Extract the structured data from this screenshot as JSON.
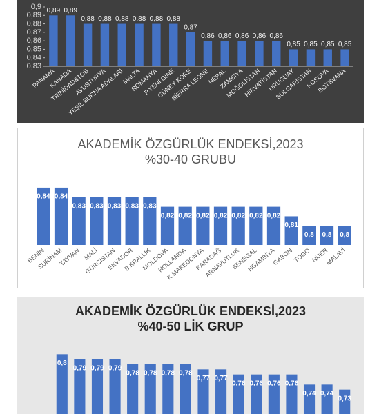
{
  "chart_data": [
    {
      "type": "bar",
      "categories": [
        "PANAMA",
        "KANADA",
        "TRİNİDAD&TOB",
        "AVUSTURYA",
        "YEŞİL BURNA ADALARI",
        "MALTA",
        "ROMANYA",
        "P.YENİ GİNE",
        "GÜNEY KORE",
        "SİERRA LEONE",
        "NEPAL",
        "ZAMBİYA",
        "MOĞOLİSTAN",
        "HIRVATİSTAN",
        "URUGUAY",
        "BULGARİSTAN",
        "KOSOVA",
        "BOTSVANA"
      ],
      "values": [
        0.89,
        0.89,
        0.88,
        0.88,
        0.88,
        0.88,
        0.88,
        0.88,
        0.87,
        0.86,
        0.86,
        0.86,
        0.86,
        0.86,
        0.85,
        0.85,
        0.85,
        0.85
      ],
      "value_labels": [
        "0,89",
        "0,89",
        "0,88",
        "0,88",
        "0,88",
        "0,88",
        "0,88",
        "0,88",
        "0,87",
        "0,86",
        "0,86",
        "0,86",
        "0,86",
        "0,86",
        "0,85",
        "0,85",
        "0,85",
        "0,85"
      ],
      "color": "#4472c4",
      "ylim": [
        0.83,
        0.9
      ],
      "yticks": [
        {
          "value": 0.83,
          "label": "0,83"
        },
        {
          "value": 0.84,
          "label": "0,84"
        },
        {
          "value": 0.85,
          "label": "0,85"
        },
        {
          "value": 0.86,
          "label": "0,86"
        },
        {
          "value": 0.87,
          "label": "0,87"
        },
        {
          "value": 0.88,
          "label": "0,88"
        },
        {
          "value": 0.89,
          "label": "0,89"
        },
        {
          "value": 0.9,
          "label": "0,9"
        }
      ]
    },
    {
      "type": "bar",
      "title": "AKADEMİK ÖZGÜRLÜK ENDEKSİ,2023",
      "subtitle": "%30-40 GRUBU",
      "categories": [
        "BENİN",
        "SURİNAM",
        "TAYVAN",
        "MALİ",
        "GÜRCİSTAN",
        "EKVADOR",
        "B.KRALLIK",
        "MOLDOVA",
        "HOLLANDA",
        "K.MAKEDONYA",
        "KARADAĞ",
        "ARNAVUTLUK",
        "SENEGAL",
        "HGAMBİYA",
        "GABON",
        "TOGO",
        "NİJER",
        "MALAVİ"
      ],
      "values": [
        0.84,
        0.84,
        0.83,
        0.83,
        0.83,
        0.83,
        0.83,
        0.82,
        0.82,
        0.82,
        0.82,
        0.82,
        0.82,
        0.82,
        0.81,
        0.8,
        0.8,
        0.8
      ],
      "value_labels": [
        "0,84",
        "0,84",
        "0,83",
        "0,83",
        "0,83",
        "0,83",
        "0,83",
        "0,82",
        "0,82",
        "0,82",
        "0,82",
        "0,82",
        "0,82",
        "0,82",
        "0,81",
        "0,8",
        "0,8",
        "0,8"
      ],
      "color": "#4472c4",
      "ylim": [
        0.78,
        0.845
      ]
    },
    {
      "type": "bar",
      "title": "AKADEMİK ÖZGÜRLÜK ENDEKSİ,2023",
      "subtitle": "%40-50 LİK GRUP",
      "values": [
        0.8,
        0.79,
        0.79,
        0.79,
        0.78,
        0.78,
        0.78,
        0.78,
        0.77,
        0.77,
        0.76,
        0.76,
        0.76,
        0.76,
        0.74,
        0.74,
        0.73
      ],
      "value_labels": [
        "0,8",
        "0,79",
        "0,79",
        "0,79",
        "0,78",
        "0,78",
        "0,78",
        "0,78",
        "0,77",
        "0,77",
        "0,76",
        "0,76",
        "0,76",
        "0,76",
        "0,74",
        "0,74",
        "0,73"
      ],
      "color": "#4472c4",
      "ylim": [
        0.66,
        0.81
      ]
    }
  ]
}
